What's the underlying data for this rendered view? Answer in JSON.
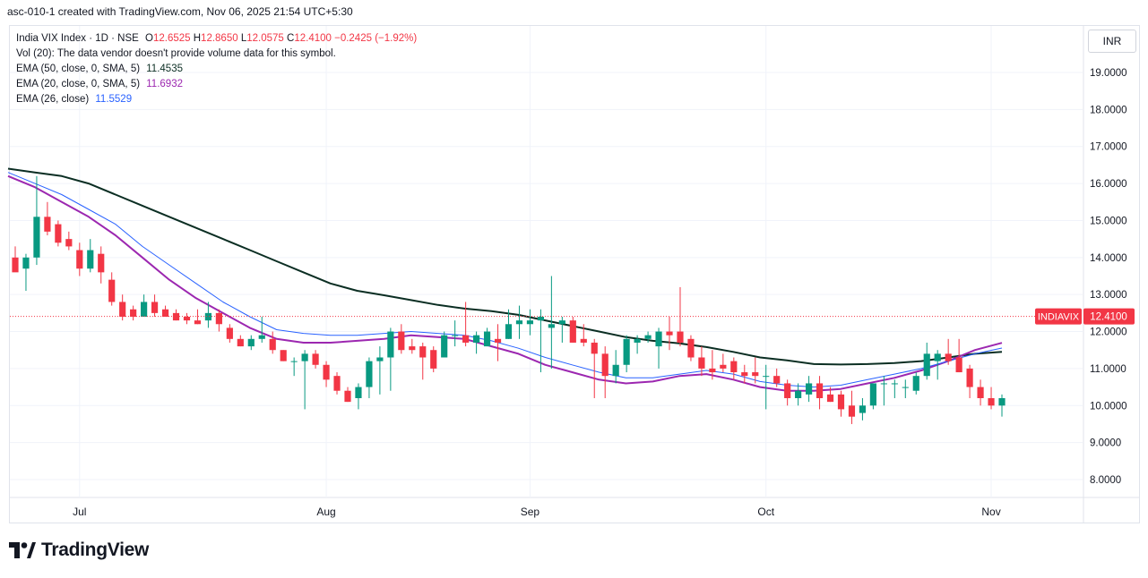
{
  "header": {
    "created_line": "asc-010-1 created with TradingView.com, Nov 06, 2025 21:54 UTC+5:30"
  },
  "legend": {
    "symbol": "India VIX Index · 1D · NSE",
    "open_label": "O",
    "open": "12.6525",
    "high_label": "H",
    "high": "12.8650",
    "low_label": "L",
    "low": "12.0575",
    "close_label": "C",
    "close": "12.4100",
    "change": "−0.2425 (−1.92%)",
    "vol_line": "Vol (20): The data vendor doesn't provide volume data for this symbol.",
    "ema50_label": "EMA (50, close, 0, SMA, 5)",
    "ema50_value": "11.4535",
    "ema20_label": "EMA (20, close, 0, SMA, 5)",
    "ema20_value": "11.6932",
    "ema26_label": "EMA (26, close)",
    "ema26_value": "11.5529"
  },
  "currency_button": "INR",
  "branding": {
    "logo_text": "TradingView",
    "logo_icon": "tradingview-logo-icon"
  },
  "colors": {
    "up": "#089981",
    "down": "#f23645",
    "ema50": "#0b2e23",
    "ema20": "#9c27b0",
    "ema26": "#2962ff",
    "price_line": "#f23645"
  },
  "chart_data": {
    "type": "candlestick",
    "ylim": [
      7.5,
      20.0
    ],
    "y_ticks": [
      "8.0000",
      "9.0000",
      "10.0000",
      "11.0000",
      "12.0000",
      "13.0000",
      "14.0000",
      "15.0000",
      "16.0000",
      "17.0000",
      "18.0000",
      "19.0000"
    ],
    "x_labels": [
      "Jul",
      "Aug",
      "Sep",
      "Oct",
      "Nov"
    ],
    "last_price_tag": {
      "symbol": "INDIAVIX",
      "value": "12.4100"
    },
    "candles": [
      {
        "x": "2025-06-23",
        "o": 14.0,
        "h": 14.3,
        "l": 13.7,
        "c": 13.6
      },
      {
        "x": "2025-06-24",
        "o": 13.7,
        "h": 14.1,
        "l": 13.1,
        "c": 14.0
      },
      {
        "x": "2025-06-25",
        "o": 14.0,
        "h": 16.2,
        "l": 13.8,
        "c": 15.1
      },
      {
        "x": "2025-06-26",
        "o": 15.1,
        "h": 15.5,
        "l": 14.6,
        "c": 14.7
      },
      {
        "x": "2025-06-27",
        "o": 14.9,
        "h": 15.0,
        "l": 14.3,
        "c": 14.4
      },
      {
        "x": "2025-06-30",
        "o": 14.5,
        "h": 14.7,
        "l": 14.2,
        "c": 14.3
      },
      {
        "x": "2025-07-01",
        "o": 14.2,
        "h": 14.4,
        "l": 13.5,
        "c": 13.7
      },
      {
        "x": "2025-07-02",
        "o": 13.7,
        "h": 14.5,
        "l": 13.6,
        "c": 14.2
      },
      {
        "x": "2025-07-03",
        "o": 14.1,
        "h": 14.3,
        "l": 13.3,
        "c": 13.6
      },
      {
        "x": "2025-07-04",
        "o": 13.4,
        "h": 13.6,
        "l": 12.7,
        "c": 12.8
      },
      {
        "x": "2025-07-07",
        "o": 12.8,
        "h": 13.0,
        "l": 12.3,
        "c": 12.4
      },
      {
        "x": "2025-07-08",
        "o": 12.6,
        "h": 12.7,
        "l": 12.3,
        "c": 12.4
      },
      {
        "x": "2025-07-09",
        "o": 12.4,
        "h": 13.0,
        "l": 12.4,
        "c": 12.8
      },
      {
        "x": "2025-07-10",
        "o": 12.8,
        "h": 13.0,
        "l": 12.4,
        "c": 12.5
      },
      {
        "x": "2025-07-11",
        "o": 12.6,
        "h": 12.7,
        "l": 12.4,
        "c": 12.4
      },
      {
        "x": "2025-07-14",
        "o": 12.5,
        "h": 12.6,
        "l": 12.3,
        "c": 12.3
      },
      {
        "x": "2025-07-15",
        "o": 12.4,
        "h": 12.5,
        "l": 12.2,
        "c": 12.3
      },
      {
        "x": "2025-07-16",
        "o": 12.3,
        "h": 12.6,
        "l": 12.2,
        "c": 12.2
      },
      {
        "x": "2025-07-17",
        "o": 12.3,
        "h": 12.8,
        "l": 12.1,
        "c": 12.5
      },
      {
        "x": "2025-07-18",
        "o": 12.5,
        "h": 12.6,
        "l": 12.0,
        "c": 12.2
      },
      {
        "x": "2025-07-21",
        "o": 12.1,
        "h": 12.2,
        "l": 11.7,
        "c": 11.8
      },
      {
        "x": "2025-07-22",
        "o": 11.8,
        "h": 11.9,
        "l": 11.6,
        "c": 11.6
      },
      {
        "x": "2025-07-23",
        "o": 11.6,
        "h": 11.9,
        "l": 11.5,
        "c": 11.8
      },
      {
        "x": "2025-07-24",
        "o": 11.8,
        "h": 12.4,
        "l": 11.7,
        "c": 11.9
      },
      {
        "x": "2025-07-25",
        "o": 11.8,
        "h": 12.0,
        "l": 11.4,
        "c": 11.5
      },
      {
        "x": "2025-07-28",
        "o": 11.5,
        "h": 11.5,
        "l": 11.2,
        "c": 11.2
      },
      {
        "x": "2025-07-29",
        "o": 11.2,
        "h": 11.3,
        "l": 10.8,
        "c": 11.2
      },
      {
        "x": "2025-07-30",
        "o": 11.2,
        "h": 11.5,
        "l": 9.9,
        "c": 11.4
      },
      {
        "x": "2025-07-31",
        "o": 11.4,
        "h": 11.5,
        "l": 11.0,
        "c": 11.1
      },
      {
        "x": "2025-08-01",
        "o": 11.1,
        "h": 11.2,
        "l": 10.5,
        "c": 10.7
      },
      {
        "x": "2025-08-04",
        "o": 10.8,
        "h": 10.9,
        "l": 10.3,
        "c": 10.4
      },
      {
        "x": "2025-08-05",
        "o": 10.4,
        "h": 10.5,
        "l": 10.1,
        "c": 10.1
      },
      {
        "x": "2025-08-06",
        "o": 10.2,
        "h": 10.6,
        "l": 9.9,
        "c": 10.5
      },
      {
        "x": "2025-08-07",
        "o": 10.5,
        "h": 11.3,
        "l": 10.2,
        "c": 11.2
      },
      {
        "x": "2025-08-08",
        "o": 11.2,
        "h": 11.6,
        "l": 10.3,
        "c": 11.3
      },
      {
        "x": "2025-08-11",
        "o": 11.3,
        "h": 12.1,
        "l": 10.4,
        "c": 12.0
      },
      {
        "x": "2025-08-12",
        "o": 12.0,
        "h": 12.2,
        "l": 11.4,
        "c": 11.5
      },
      {
        "x": "2025-08-13",
        "o": 11.6,
        "h": 11.8,
        "l": 11.4,
        "c": 11.5
      },
      {
        "x": "2025-08-14",
        "o": 11.6,
        "h": 11.7,
        "l": 10.7,
        "c": 11.3
      },
      {
        "x": "2025-08-18",
        "o": 11.5,
        "h": 11.6,
        "l": 10.9,
        "c": 11.0
      },
      {
        "x": "2025-08-19",
        "o": 11.3,
        "h": 12.0,
        "l": 11.3,
        "c": 11.9
      },
      {
        "x": "2025-08-20",
        "o": 11.9,
        "h": 12.3,
        "l": 11.6,
        "c": 11.9
      },
      {
        "x": "2025-08-21",
        "o": 11.9,
        "h": 12.8,
        "l": 11.6,
        "c": 11.7
      },
      {
        "x": "2025-08-22",
        "o": 11.7,
        "h": 12.0,
        "l": 11.4,
        "c": 11.9
      },
      {
        "x": "2025-08-25",
        "o": 11.6,
        "h": 12.1,
        "l": 11.6,
        "c": 12.0
      },
      {
        "x": "2025-08-26",
        "o": 11.8,
        "h": 12.2,
        "l": 11.2,
        "c": 11.7
      },
      {
        "x": "2025-08-28",
        "o": 11.8,
        "h": 12.6,
        "l": 11.8,
        "c": 12.2
      },
      {
        "x": "2025-08-29",
        "o": 12.2,
        "h": 12.7,
        "l": 11.8,
        "c": 12.3
      },
      {
        "x": "2025-09-01",
        "o": 12.2,
        "h": 12.6,
        "l": 11.9,
        "c": 12.3
      },
      {
        "x": "2025-09-02",
        "o": 12.3,
        "h": 12.6,
        "l": 10.9,
        "c": 12.4
      },
      {
        "x": "2025-09-03",
        "o": 12.1,
        "h": 13.5,
        "l": 11.0,
        "c": 12.2
      },
      {
        "x": "2025-09-04",
        "o": 12.2,
        "h": 12.4,
        "l": 11.7,
        "c": 12.3
      },
      {
        "x": "2025-09-05",
        "o": 12.3,
        "h": 12.4,
        "l": 11.7,
        "c": 11.7
      },
      {
        "x": "2025-09-08",
        "o": 11.8,
        "h": 12.2,
        "l": 11.6,
        "c": 11.7
      },
      {
        "x": "2025-09-09",
        "o": 11.7,
        "h": 11.8,
        "l": 10.2,
        "c": 11.4
      },
      {
        "x": "2025-09-10",
        "o": 11.4,
        "h": 11.6,
        "l": 10.2,
        "c": 10.8
      },
      {
        "x": "2025-09-11",
        "o": 10.8,
        "h": 11.5,
        "l": 10.6,
        "c": 11.1
      },
      {
        "x": "2025-09-12",
        "o": 11.1,
        "h": 11.9,
        "l": 10.9,
        "c": 11.8
      },
      {
        "x": "2025-09-15",
        "o": 11.7,
        "h": 11.9,
        "l": 11.4,
        "c": 11.8
      },
      {
        "x": "2025-09-16",
        "o": 11.8,
        "h": 12.0,
        "l": 11.7,
        "c": 11.9
      },
      {
        "x": "2025-09-17",
        "o": 11.6,
        "h": 12.1,
        "l": 11.0,
        "c": 12.0
      },
      {
        "x": "2025-09-18",
        "o": 12.0,
        "h": 12.4,
        "l": 11.5,
        "c": 11.9
      },
      {
        "x": "2025-09-19",
        "o": 12.0,
        "h": 13.2,
        "l": 11.6,
        "c": 11.7
      },
      {
        "x": "2025-09-22",
        "o": 11.8,
        "h": 11.9,
        "l": 11.2,
        "c": 11.3
      },
      {
        "x": "2025-09-23",
        "o": 11.3,
        "h": 11.6,
        "l": 10.8,
        "c": 11.0
      },
      {
        "x": "2025-09-24",
        "o": 11.0,
        "h": 11.5,
        "l": 10.7,
        "c": 10.9
      },
      {
        "x": "2025-09-25",
        "o": 11.1,
        "h": 11.4,
        "l": 10.9,
        "c": 11.0
      },
      {
        "x": "2025-09-26",
        "o": 11.2,
        "h": 11.3,
        "l": 10.7,
        "c": 10.9
      },
      {
        "x": "2025-09-29",
        "o": 10.9,
        "h": 11.1,
        "l": 10.6,
        "c": 10.8
      },
      {
        "x": "2025-09-30",
        "o": 10.9,
        "h": 11.3,
        "l": 10.6,
        "c": 10.8
      },
      {
        "x": "2025-10-01",
        "o": 10.8,
        "h": 11.1,
        "l": 9.9,
        "c": 10.8
      },
      {
        "x": "2025-10-03",
        "o": 10.8,
        "h": 11.0,
        "l": 10.5,
        "c": 10.6
      },
      {
        "x": "2025-10-06",
        "o": 10.6,
        "h": 10.7,
        "l": 10.0,
        "c": 10.2
      },
      {
        "x": "2025-10-07",
        "o": 10.2,
        "h": 10.6,
        "l": 10.0,
        "c": 10.4
      },
      {
        "x": "2025-10-08",
        "o": 10.3,
        "h": 10.8,
        "l": 10.1,
        "c": 10.6
      },
      {
        "x": "2025-10-09",
        "o": 10.6,
        "h": 10.8,
        "l": 9.9,
        "c": 10.2
      },
      {
        "x": "2025-10-10",
        "o": 10.3,
        "h": 10.5,
        "l": 10.1,
        "c": 10.1
      },
      {
        "x": "2025-10-13",
        "o": 10.3,
        "h": 10.4,
        "l": 9.7,
        "c": 9.9
      },
      {
        "x": "2025-10-14",
        "o": 10.0,
        "h": 10.4,
        "l": 9.5,
        "c": 9.7
      },
      {
        "x": "2025-10-15",
        "o": 9.8,
        "h": 10.2,
        "l": 9.6,
        "c": 10.0
      },
      {
        "x": "2025-10-16",
        "o": 10.0,
        "h": 10.6,
        "l": 9.9,
        "c": 10.6
      },
      {
        "x": "2025-10-17",
        "o": 10.6,
        "h": 10.8,
        "l": 10.0,
        "c": 10.6
      },
      {
        "x": "2025-10-20",
        "o": 10.6,
        "h": 10.7,
        "l": 10.2,
        "c": 10.6
      },
      {
        "x": "2025-10-21",
        "o": 10.5,
        "h": 10.7,
        "l": 10.2,
        "c": 10.5
      },
      {
        "x": "2025-10-23",
        "o": 10.4,
        "h": 10.9,
        "l": 10.3,
        "c": 10.8
      },
      {
        "x": "2025-10-24",
        "o": 10.8,
        "h": 11.7,
        "l": 10.7,
        "c": 11.4
      },
      {
        "x": "2025-10-27",
        "o": 11.2,
        "h": 11.5,
        "l": 10.7,
        "c": 11.4
      },
      {
        "x": "2025-10-28",
        "o": 11.4,
        "h": 11.8,
        "l": 11.1,
        "c": 11.2
      },
      {
        "x": "2025-10-29",
        "o": 11.3,
        "h": 11.8,
        "l": 10.9,
        "c": 10.9
      },
      {
        "x": "2025-10-30",
        "o": 11.0,
        "h": 11.1,
        "l": 10.2,
        "c": 10.5
      },
      {
        "x": "2025-10-31",
        "o": 10.5,
        "h": 10.7,
        "l": 10.0,
        "c": 10.2
      },
      {
        "x": "2025-11-03",
        "o": 10.2,
        "h": 10.5,
        "l": 9.9,
        "c": 10.0
      },
      {
        "x": "2025-11-04",
        "o": 10.0,
        "h": 10.3,
        "l": 9.7,
        "c": 10.2
      }
    ],
    "series": [
      {
        "name": "EMA (50, close, 0, SMA, 5)",
        "color": "#0b2e23",
        "values": [
          16.4,
          16.3,
          16.2,
          16.0,
          15.7,
          15.4,
          15.1,
          14.8,
          14.5,
          14.2,
          13.9,
          13.6,
          13.3,
          13.1,
          12.98,
          12.85,
          12.72,
          12.62,
          12.55,
          12.45,
          12.3,
          12.15,
          12.0,
          11.85,
          11.75,
          11.68,
          11.58,
          11.45,
          11.3,
          11.22,
          11.12,
          11.11,
          11.12,
          11.15,
          11.2,
          11.3,
          11.4,
          11.4535
        ]
      },
      {
        "name": "EMA (20, close, 0, SMA, 5)",
        "color": "#9c27b0",
        "values": [
          16.2,
          15.9,
          15.5,
          15.1,
          14.6,
          14.0,
          13.4,
          12.9,
          12.5,
          12.1,
          11.8,
          11.7,
          11.7,
          11.75,
          11.8,
          11.9,
          11.85,
          11.8,
          11.6,
          11.4,
          11.1,
          10.9,
          10.7,
          10.6,
          10.65,
          10.8,
          10.85,
          10.7,
          10.5,
          10.4,
          10.4,
          10.45,
          10.6,
          10.75,
          10.95,
          11.2,
          11.5,
          11.6932
        ]
      },
      {
        "name": "EMA (26, close)",
        "color": "#2962ff",
        "values": [
          16.3,
          16.0,
          15.7,
          15.3,
          14.9,
          14.3,
          13.8,
          13.3,
          12.8,
          12.4,
          12.05,
          11.95,
          11.9,
          11.9,
          11.95,
          12.0,
          11.95,
          11.9,
          11.75,
          11.55,
          11.3,
          11.1,
          10.9,
          10.75,
          10.75,
          10.85,
          10.95,
          10.85,
          10.65,
          10.55,
          10.5,
          10.55,
          10.7,
          10.85,
          11.0,
          11.2,
          11.4,
          11.5529
        ]
      }
    ]
  }
}
